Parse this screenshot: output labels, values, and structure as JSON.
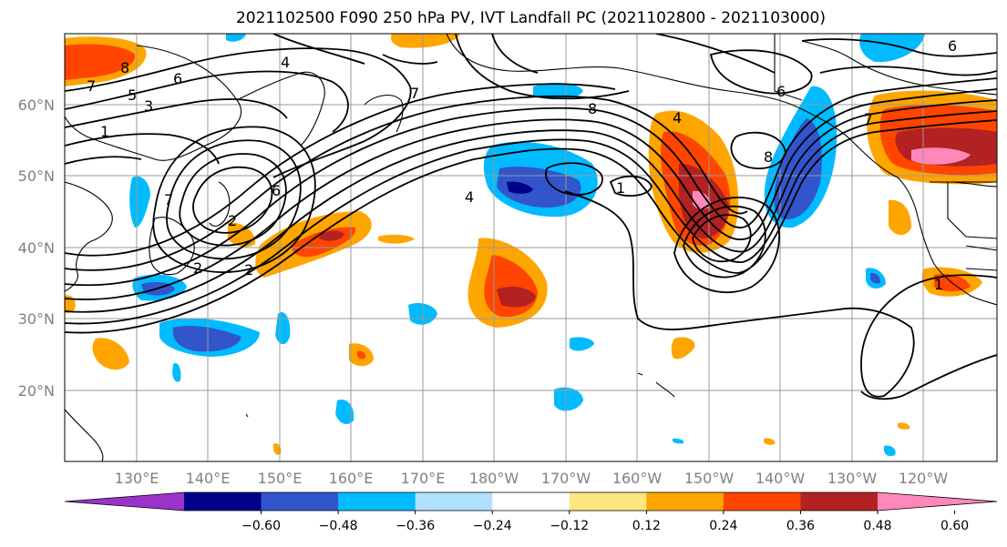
{
  "title": "2021102500 F090 250 hPa PV, IVT Landfall PC (2021102800 - 2021103000)",
  "lat_labels": [
    "60°N",
    "50°N",
    "40°N",
    "30°N",
    "20°N"
  ],
  "lon_labels": [
    "130°E",
    "140°E",
    "150°E",
    "160°E",
    "170°E",
    "180°W",
    "170°W",
    "160°W",
    "150°W",
    "140°W",
    "130°W",
    "120°W"
  ],
  "colorbar": {
    "ticks": [
      "−0.60",
      "−0.48",
      "−0.36",
      "−0.24",
      "−0.12",
      "0.12",
      "0.24",
      "0.36",
      "0.48",
      "0.60"
    ],
    "colors": [
      "#9933cc",
      "#000088",
      "#3355cc",
      "#00bbff",
      "#b0e0ff",
      "#ffffff",
      "#ffe680",
      "#ffa500",
      "#ff4500",
      "#b22222",
      "#ff88bb"
    ]
  },
  "contour_labels": [
    "8",
    "7",
    "6",
    "5",
    "4",
    "3",
    "2",
    "1",
    "7",
    "6",
    "4",
    "2",
    "8",
    "7",
    "6",
    "1",
    "4",
    "8",
    "7",
    "6",
    "1",
    "2"
  ]
}
